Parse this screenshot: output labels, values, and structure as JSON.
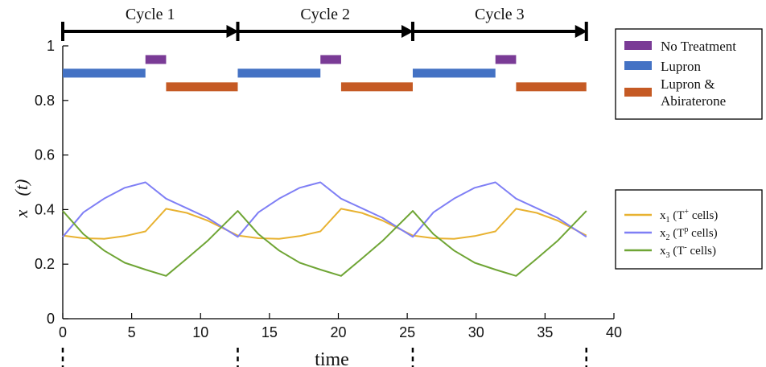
{
  "chart_data": {
    "type": "line",
    "xlabel": "time",
    "ylabel": "x⃗(t)",
    "xlim": [
      0,
      40
    ],
    "ylim": [
      0,
      1
    ],
    "xticks": [
      "0",
      "5",
      "10",
      "15",
      "20",
      "25",
      "30",
      "35",
      "40"
    ],
    "yticks": [
      "0",
      "0.2",
      "0.4",
      "0.6",
      "0.8",
      "1"
    ],
    "grid": false,
    "cycles": [
      {
        "label": "Cycle 1",
        "start": 0,
        "end": 12.7
      },
      {
        "label": "Cycle 2",
        "start": 12.7,
        "end": 25.4
      },
      {
        "label": "Cycle 3",
        "start": 25.4,
        "end": 38
      }
    ],
    "treatments": [
      {
        "name": "No Treatment",
        "color": "#7a3b96",
        "y": 0.95,
        "intervals": [
          [
            6.0,
            7.5
          ],
          [
            18.7,
            20.2
          ],
          [
            31.4,
            32.9
          ]
        ]
      },
      {
        "name": "Lupron",
        "color": "#4472c4",
        "y": 0.9,
        "intervals": [
          [
            0,
            6.0
          ],
          [
            12.7,
            18.7
          ],
          [
            25.4,
            31.4
          ]
        ]
      },
      {
        "name": "Lupron & Abiraterone",
        "color": "#c55a24",
        "y": 0.85,
        "intervals": [
          [
            7.5,
            12.7
          ],
          [
            20.2,
            25.4
          ],
          [
            32.9,
            38
          ]
        ]
      }
    ],
    "treatment_legend": [
      {
        "label": "No Treatment",
        "color": "#7a3b96"
      },
      {
        "label": "Lupron",
        "color": "#4472c4"
      },
      {
        "label": "Lupron &\nAbiraterone",
        "color": "#c55a24"
      }
    ],
    "series_legend": [
      {
        "sym": "x",
        "sub": "1",
        "pre": " (T",
        "sup": "+",
        "post": " cells)",
        "color": "#e8b231"
      },
      {
        "sym": "x",
        "sub": "2",
        "pre": " (T",
        "sup": "p",
        "post": " cells)",
        "color": "#7f7ff5"
      },
      {
        "sym": "x",
        "sub": "3",
        "pre": " (T",
        "sup": "-",
        "post": " cells)",
        "color": "#6fa535"
      }
    ],
    "series": [
      {
        "name": "x1 (T+ cells)",
        "color": "#e8b231",
        "x": [
          0,
          1.5,
          3,
          4.5,
          6.0,
          7.5,
          9,
          10.5,
          12.7,
          14.2,
          15.7,
          17.2,
          18.7,
          20.2,
          21.7,
          23.2,
          25.4,
          26.9,
          28.4,
          29.9,
          31.4,
          32.9,
          34.4,
          35.9,
          38
        ],
        "y": [
          0.305,
          0.295,
          0.293,
          0.303,
          0.32,
          0.403,
          0.388,
          0.36,
          0.305,
          0.295,
          0.293,
          0.303,
          0.32,
          0.403,
          0.388,
          0.36,
          0.305,
          0.295,
          0.293,
          0.303,
          0.32,
          0.403,
          0.388,
          0.36,
          0.305
        ]
      },
      {
        "name": "x2 (Tp cells)",
        "color": "#7f7ff5",
        "x": [
          0,
          1.5,
          3,
          4.5,
          6.0,
          7.5,
          9,
          10.5,
          12.7,
          14.2,
          15.7,
          17.2,
          18.7,
          20.2,
          21.7,
          23.2,
          25.4,
          26.9,
          28.4,
          29.9,
          31.4,
          32.9,
          34.4,
          35.9,
          38
        ],
        "y": [
          0.3,
          0.39,
          0.44,
          0.48,
          0.5,
          0.44,
          0.405,
          0.37,
          0.3,
          0.39,
          0.44,
          0.48,
          0.5,
          0.44,
          0.405,
          0.37,
          0.3,
          0.39,
          0.44,
          0.48,
          0.5,
          0.44,
          0.405,
          0.37,
          0.3
        ]
      },
      {
        "name": "x3 (T- cells)",
        "color": "#6fa535",
        "x": [
          0,
          1.5,
          3,
          4.5,
          6.0,
          7.5,
          9,
          10.5,
          12.7,
          14.2,
          15.7,
          17.2,
          18.7,
          20.2,
          21.7,
          23.2,
          25.4,
          26.9,
          28.4,
          29.9,
          31.4,
          32.9,
          34.4,
          35.9,
          38
        ],
        "y": [
          0.395,
          0.31,
          0.25,
          0.205,
          0.18,
          0.157,
          0.22,
          0.285,
          0.395,
          0.31,
          0.25,
          0.205,
          0.18,
          0.157,
          0.22,
          0.285,
          0.395,
          0.31,
          0.25,
          0.205,
          0.18,
          0.157,
          0.22,
          0.285,
          0.395
        ]
      }
    ],
    "bottom_markers": [
      0,
      12.7,
      25.4,
      38
    ]
  }
}
